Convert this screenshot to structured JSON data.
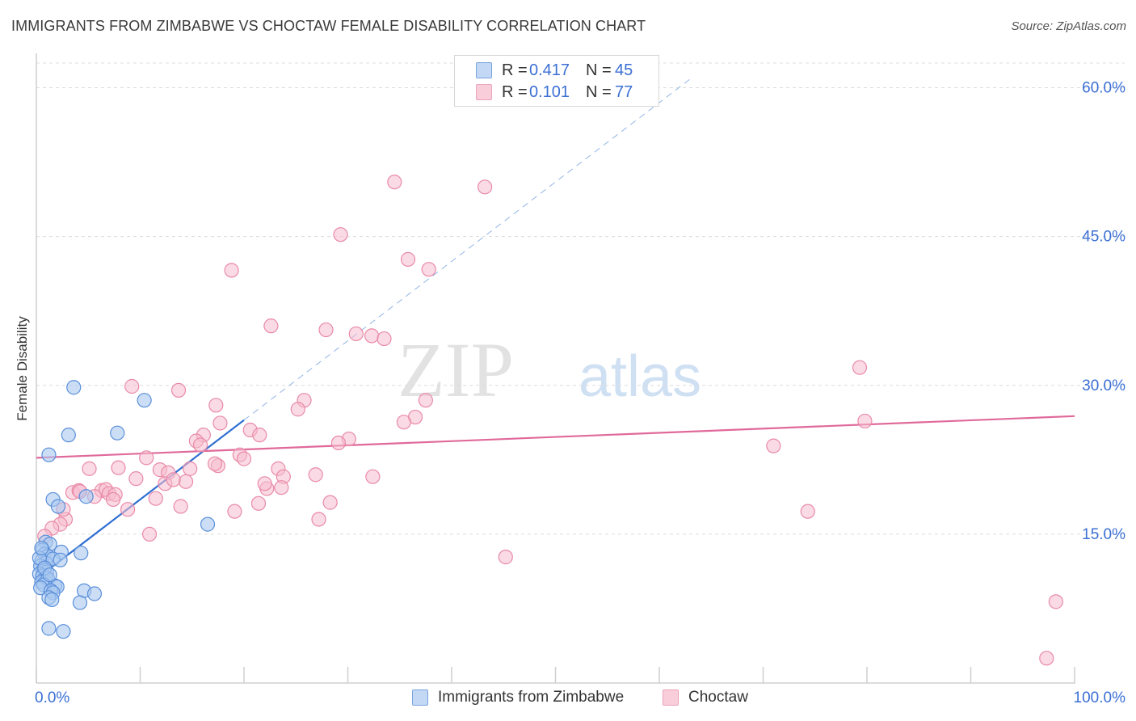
{
  "title": "IMMIGRANTS FROM ZIMBABWE VS CHOCTAW FEMALE DISABILITY CORRELATION CHART",
  "source": "Source: ZipAtlas.com",
  "watermark": {
    "zip": "ZIP",
    "atlas": "atlas"
  },
  "colors": {
    "blue_fill": "#a9c8f0",
    "blue_stroke": "#5b8fd9",
    "blue_line": "#2f6fd1",
    "pink_fill": "#f6bccd",
    "pink_stroke": "#e98aa8",
    "pink_line": "#e0699a",
    "tick_label": "#3b6fd4",
    "grid": "#dcdcdc"
  },
  "legend": {
    "rows": [
      {
        "r_label": "R =",
        "r_value": "0.417",
        "n_label": "N =",
        "n_value": "45"
      },
      {
        "r_label": "R =",
        "r_value": "0.101",
        "n_label": "N =",
        "n_value": "77"
      }
    ]
  },
  "bottom_legend": {
    "series1": "Immigrants from Zimbabwe",
    "series2": "Choctaw"
  },
  "chart_data": {
    "type": "scatter",
    "title": "IMMIGRANTS FROM ZIMBABWE VS CHOCTAW FEMALE DISABILITY CORRELATION CHART",
    "xlabel": "",
    "ylabel": "Female Disability",
    "xlim": [
      0,
      100
    ],
    "ylim": [
      0,
      62
    ],
    "x_tick_labels": {
      "min": "0.0%",
      "max": "100.0%"
    },
    "y_ticks": [
      15,
      30,
      45,
      60
    ],
    "y_tick_labels": [
      "15.0%",
      "30.0%",
      "45.0%",
      "60.0%"
    ],
    "series": [
      {
        "name": "Immigrants from Zimbabwe",
        "color": "blue",
        "trend": {
          "x0": 0,
          "y0": 10.5,
          "x1": 20,
          "y1": 26.5,
          "dashed_to_x": 63
        },
        "points": [
          [
            3.6,
            29.8
          ],
          [
            10.4,
            28.5
          ],
          [
            7.8,
            25.2
          ],
          [
            3.1,
            25.0
          ],
          [
            1.2,
            23.0
          ],
          [
            1.6,
            18.5
          ],
          [
            2.1,
            17.8
          ],
          [
            4.8,
            18.8
          ],
          [
            16.5,
            16.0
          ],
          [
            0.9,
            14.2
          ],
          [
            1.3,
            14.0
          ],
          [
            0.6,
            13.4
          ],
          [
            0.8,
            13.0
          ],
          [
            1.1,
            12.8
          ],
          [
            2.4,
            13.2
          ],
          [
            4.3,
            13.1
          ],
          [
            0.5,
            12.3
          ],
          [
            0.9,
            12.1
          ],
          [
            1.6,
            12.5
          ],
          [
            2.3,
            12.4
          ],
          [
            0.4,
            11.8
          ],
          [
            0.7,
            11.4
          ],
          [
            1.0,
            11.2
          ],
          [
            0.3,
            11.0
          ],
          [
            0.6,
            10.8
          ],
          [
            0.9,
            10.6
          ],
          [
            0.5,
            10.2
          ],
          [
            1.1,
            10.5
          ],
          [
            0.7,
            9.9
          ],
          [
            0.4,
            9.6
          ],
          [
            1.8,
            9.8
          ],
          [
            2.0,
            9.7
          ],
          [
            1.4,
            9.3
          ],
          [
            1.6,
            9.1
          ],
          [
            4.6,
            9.3
          ],
          [
            5.6,
            9.0
          ],
          [
            1.2,
            8.6
          ],
          [
            1.5,
            8.4
          ],
          [
            4.2,
            8.1
          ],
          [
            1.2,
            5.5
          ],
          [
            2.6,
            5.2
          ],
          [
            0.3,
            12.6
          ],
          [
            0.8,
            11.6
          ],
          [
            1.3,
            10.9
          ],
          [
            0.5,
            13.6
          ]
        ]
      },
      {
        "name": "Choctaw",
        "color": "pink",
        "trend": {
          "x0": 0,
          "y0": 22.7,
          "x1": 100,
          "y1": 26.9
        },
        "points": [
          [
            34.5,
            50.5
          ],
          [
            43.2,
            50.0
          ],
          [
            29.3,
            45.2
          ],
          [
            35.8,
            42.7
          ],
          [
            37.8,
            41.7
          ],
          [
            18.8,
            41.6
          ],
          [
            22.6,
            36.0
          ],
          [
            27.9,
            35.6
          ],
          [
            30.8,
            35.2
          ],
          [
            32.3,
            35.0
          ],
          [
            33.5,
            34.7
          ],
          [
            79.3,
            31.8
          ],
          [
            9.2,
            29.9
          ],
          [
            13.7,
            29.5
          ],
          [
            25.8,
            28.5
          ],
          [
            17.3,
            28.0
          ],
          [
            37.5,
            28.5
          ],
          [
            25.2,
            27.6
          ],
          [
            36.5,
            26.8
          ],
          [
            35.4,
            26.3
          ],
          [
            17.7,
            26.2
          ],
          [
            20.6,
            25.5
          ],
          [
            21.5,
            25.0
          ],
          [
            16.1,
            25.0
          ],
          [
            15.4,
            24.4
          ],
          [
            15.8,
            24.0
          ],
          [
            30.1,
            24.6
          ],
          [
            29.1,
            24.2
          ],
          [
            79.8,
            26.4
          ],
          [
            71.0,
            23.9
          ],
          [
            10.6,
            22.7
          ],
          [
            19.6,
            23.0
          ],
          [
            20.0,
            22.6
          ],
          [
            7.9,
            21.7
          ],
          [
            11.9,
            21.5
          ],
          [
            12.7,
            21.2
          ],
          [
            14.8,
            21.6
          ],
          [
            17.5,
            21.9
          ],
          [
            23.3,
            21.6
          ],
          [
            26.9,
            21.0
          ],
          [
            23.8,
            20.8
          ],
          [
            32.4,
            20.8
          ],
          [
            14.4,
            20.3
          ],
          [
            9.6,
            20.6
          ],
          [
            12.4,
            20.1
          ],
          [
            22.2,
            19.6
          ],
          [
            23.6,
            19.7
          ],
          [
            3.5,
            19.2
          ],
          [
            4.1,
            19.4
          ],
          [
            6.3,
            19.4
          ],
          [
            6.7,
            19.5
          ],
          [
            7.0,
            19.1
          ],
          [
            7.6,
            19.0
          ],
          [
            7.4,
            18.5
          ],
          [
            5.6,
            18.8
          ],
          [
            11.5,
            18.6
          ],
          [
            21.4,
            18.1
          ],
          [
            28.3,
            18.2
          ],
          [
            13.9,
            17.8
          ],
          [
            8.8,
            17.5
          ],
          [
            19.1,
            17.3
          ],
          [
            74.3,
            17.3
          ],
          [
            27.2,
            16.5
          ],
          [
            2.8,
            16.5
          ],
          [
            2.3,
            16.0
          ],
          [
            1.5,
            15.6
          ],
          [
            10.9,
            15.0
          ],
          [
            0.8,
            14.8
          ],
          [
            2.6,
            17.5
          ],
          [
            5.1,
            21.6
          ],
          [
            4.2,
            19.3
          ],
          [
            45.2,
            12.7
          ],
          [
            98.2,
            8.2
          ],
          [
            97.3,
            2.5
          ],
          [
            13.2,
            20.5
          ],
          [
            17.2,
            22.1
          ],
          [
            22.0,
            20.1
          ]
        ]
      }
    ],
    "grid": true,
    "legend_position": "top-center"
  }
}
